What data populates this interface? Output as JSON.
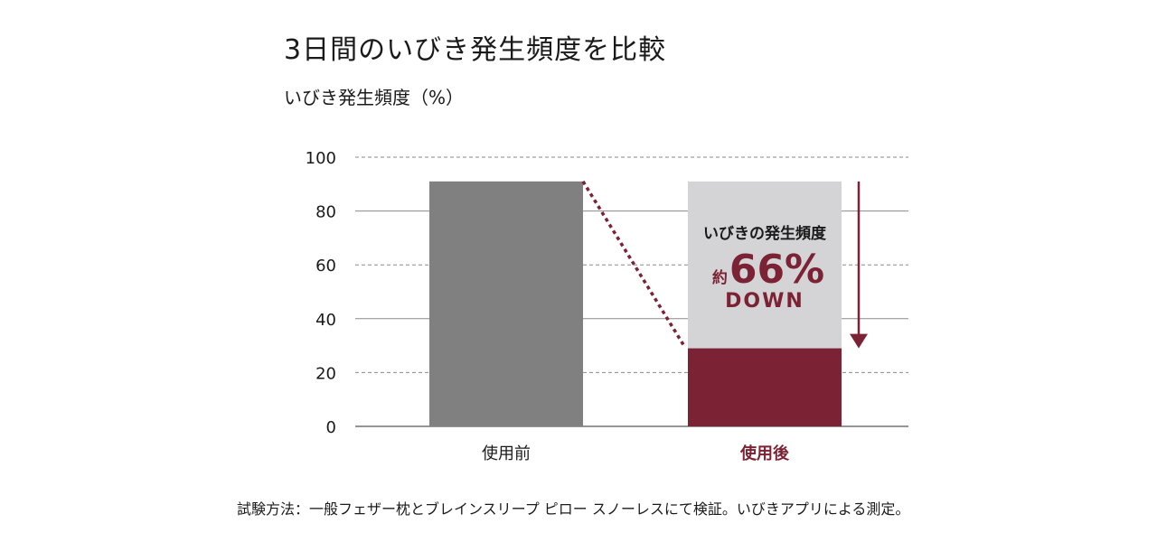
{
  "chart_data": {
    "type": "bar",
    "title": "3日間のいびき発生頻度を比較",
    "ylabel": "いびき発生頻度（%）",
    "xlabel": "",
    "categories": [
      "使用前",
      "使用後"
    ],
    "values": [
      91,
      29
    ],
    "ylim": [
      0,
      100
    ],
    "yticks": [
      0,
      20,
      40,
      60,
      80,
      100
    ],
    "grid": true,
    "colors": {
      "before_bar": "#808080",
      "after_bar": "#7b2234",
      "after_reduction_area": "#d4d4d6",
      "accent": "#7b2234"
    },
    "annotation": {
      "line1": "いびきの発生頻度",
      "prefix": "約",
      "value": "66%",
      "suffix": "DOWN"
    },
    "footnote": "試験方法：一般フェザー枕とブレインスリープ ピロー スノーレスにて検証。いびきアプリによる測定。"
  }
}
